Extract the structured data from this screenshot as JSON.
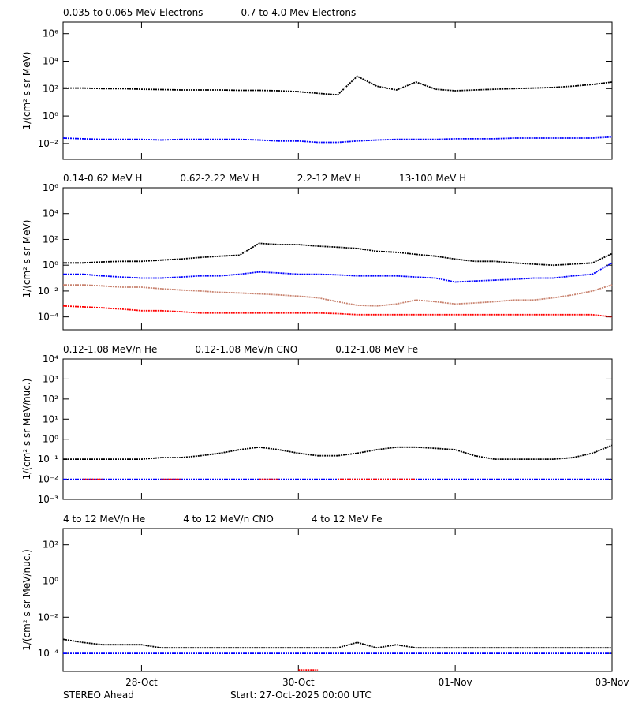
{
  "chart_data": [
    {
      "type": "line",
      "log_y": true,
      "xlim": [
        0,
        7
      ],
      "ylim": [
        0.0007,
        7000000
      ],
      "ylabel": "1/(cm² s sr MeV)",
      "yticks": [
        {
          "value": 0.01,
          "label": "10⁻²"
        },
        {
          "value": 1,
          "label": "10⁰"
        },
        {
          "value": 100,
          "label": "10²"
        },
        {
          "value": 10000,
          "label": "10⁴"
        },
        {
          "value": 1000000,
          "label": "10⁶"
        }
      ],
      "x": [
        0,
        0.25,
        0.5,
        0.75,
        1,
        1.25,
        1.5,
        1.75,
        2,
        2.25,
        2.5,
        2.75,
        3,
        3.25,
        3.5,
        3.75,
        4,
        4.25,
        4.5,
        4.75,
        5,
        5.25,
        5.5,
        5.75,
        6,
        6.25,
        6.5,
        6.75,
        7
      ],
      "series": [
        {
          "name": "0.035 to 0.065 MeV Electrons",
          "color": "#000000",
          "values": [
            110,
            110,
            100,
            100,
            90,
            85,
            80,
            80,
            80,
            75,
            75,
            70,
            60,
            45,
            35,
            800,
            150,
            80,
            300,
            90,
            70,
            80,
            90,
            100,
            110,
            120,
            150,
            200,
            300
          ]
        },
        {
          "name": "0.7 to 4.0 Mev Electrons",
          "color": "#0000ff",
          "values": [
            0.025,
            0.022,
            0.02,
            0.02,
            0.02,
            0.018,
            0.02,
            0.02,
            0.02,
            0.02,
            0.018,
            0.015,
            0.015,
            0.012,
            0.012,
            0.015,
            0.018,
            0.02,
            0.02,
            0.02,
            0.022,
            0.022,
            0.022,
            0.025,
            0.025,
            0.025,
            0.025,
            0.025,
            0.03
          ]
        }
      ]
    },
    {
      "type": "line",
      "log_y": true,
      "xlim": [
        0,
        7
      ],
      "ylim": [
        1e-05,
        1000000
      ],
      "ylabel": "1/(cm² s sr MeV)",
      "yticks": [
        {
          "value": 0.0001,
          "label": "10⁻⁴"
        },
        {
          "value": 0.01,
          "label": "10⁻²"
        },
        {
          "value": 1,
          "label": "10⁰"
        },
        {
          "value": 100,
          "label": "10²"
        },
        {
          "value": 10000,
          "label": "10⁴"
        },
        {
          "value": 1000000,
          "label": "10⁶"
        }
      ],
      "x": [
        0,
        0.25,
        0.5,
        0.75,
        1,
        1.25,
        1.5,
        1.75,
        2,
        2.25,
        2.5,
        2.75,
        3,
        3.25,
        3.5,
        3.75,
        4,
        4.25,
        4.5,
        4.75,
        5,
        5.25,
        5.5,
        5.75,
        6,
        6.25,
        6.5,
        6.75,
        7
      ],
      "series": [
        {
          "name": "0.14-0.62 MeV H",
          "color": "#000000",
          "values": [
            1.5,
            1.5,
            1.8,
            2,
            2,
            2.5,
            3,
            4,
            5,
            6,
            50,
            40,
            40,
            30,
            25,
            20,
            12,
            10,
            7,
            5,
            3,
            2,
            2,
            1.5,
            1.2,
            1,
            1.2,
            1.5,
            8
          ]
        },
        {
          "name": "0.62-2.22 MeV H",
          "color": "#0000ff",
          "values": [
            0.2,
            0.2,
            0.15,
            0.12,
            0.1,
            0.1,
            0.12,
            0.15,
            0.15,
            0.2,
            0.3,
            0.25,
            0.2,
            0.2,
            0.18,
            0.15,
            0.15,
            0.15,
            0.12,
            0.1,
            0.05,
            0.06,
            0.07,
            0.08,
            0.1,
            0.1,
            0.15,
            0.2,
            1.5
          ]
        },
        {
          "name": "2.2-12 MeV H",
          "color": "#c8826e",
          "values": [
            0.03,
            0.03,
            0.025,
            0.02,
            0.02,
            0.015,
            0.012,
            0.01,
            0.008,
            0.007,
            0.006,
            0.005,
            0.004,
            0.003,
            0.0015,
            0.0008,
            0.0007,
            0.001,
            0.002,
            0.0015,
            0.001,
            0.0012,
            0.0015,
            0.002,
            0.002,
            0.003,
            0.005,
            0.01,
            0.03
          ]
        },
        {
          "name": "13-100 MeV H",
          "color": "#ff0000",
          "values": [
            0.0007,
            0.0006,
            0.0005,
            0.0004,
            0.0003,
            0.0003,
            0.00025,
            0.0002,
            0.0002,
            0.0002,
            0.0002,
            0.0002,
            0.0002,
            0.0002,
            0.00018,
            0.00015,
            0.00015,
            0.00015,
            0.00015,
            0.00015,
            0.00015,
            0.00015,
            0.00015,
            0.00015,
            0.00015,
            0.00015,
            0.00015,
            0.00015,
            0.0001
          ]
        }
      ]
    },
    {
      "type": "line",
      "log_y": true,
      "xlim": [
        0,
        7
      ],
      "ylim": [
        0.001,
        10000
      ],
      "ylabel": "1/(cm² s sr MeV/nuc.)",
      "yticks": [
        {
          "value": 0.001,
          "label": "10⁻³"
        },
        {
          "value": 0.01,
          "label": "10⁻²"
        },
        {
          "value": 0.1,
          "label": "10⁻¹"
        },
        {
          "value": 1,
          "label": "10⁰"
        },
        {
          "value": 10,
          "label": "10¹"
        },
        {
          "value": 100,
          "label": "10²"
        },
        {
          "value": 1000,
          "label": "10³"
        },
        {
          "value": 10000,
          "label": "10⁴"
        }
      ],
      "x": [
        0,
        0.25,
        0.5,
        0.75,
        1,
        1.25,
        1.5,
        1.75,
        2,
        2.25,
        2.5,
        2.75,
        3,
        3.25,
        3.5,
        3.75,
        4,
        4.25,
        4.5,
        4.75,
        5,
        5.25,
        5.5,
        5.75,
        6,
        6.25,
        6.5,
        6.75,
        7
      ],
      "series": [
        {
          "name": "0.12-1.08 MeV/n He",
          "color": "#000000",
          "values": [
            0.1,
            0.1,
            0.1,
            0.1,
            0.1,
            0.12,
            0.12,
            0.15,
            0.2,
            0.3,
            0.4,
            0.3,
            0.2,
            0.15,
            0.15,
            0.2,
            0.3,
            0.4,
            0.4,
            0.35,
            0.3,
            0.15,
            0.1,
            0.1,
            0.1,
            0.1,
            0.12,
            0.2,
            0.5
          ]
        },
        {
          "name": "0.12-1.08 MeV/n CNO",
          "color": "#0000ff",
          "values": [
            0.01,
            0.01,
            0.01,
            0.01,
            0.01,
            0.01,
            0.01,
            0.01,
            0.01,
            0.01,
            0.01,
            0.01,
            0.01,
            0.01,
            0.01,
            0.01,
            0.01,
            0.01,
            0.01,
            0.01,
            0.01,
            0.01,
            0.01,
            0.01,
            0.01,
            0.01,
            0.01,
            0.01,
            0.01
          ]
        },
        {
          "name": "0.12-1.08 MeV Fe",
          "color": "#ff0000",
          "values": [
            null,
            0.01,
            0.01,
            null,
            null,
            0.01,
            0.01,
            null,
            null,
            null,
            0.01,
            0.01,
            null,
            null,
            0.01,
            0.01,
            0.01,
            0.01,
            0.01,
            null,
            null,
            null,
            null,
            null,
            null,
            null,
            null,
            null,
            null
          ]
        }
      ]
    },
    {
      "type": "line",
      "log_y": true,
      "xlim": [
        0,
        7
      ],
      "ylim": [
        1e-05,
        800
      ],
      "ylabel": "1/(cm² s sr MeV/nuc.)",
      "yticks": [
        {
          "value": 0.0001,
          "label": "10⁻⁴"
        },
        {
          "value": 0.01,
          "label": "10⁻²"
        },
        {
          "value": 1,
          "label": "10⁰"
        },
        {
          "value": 100,
          "label": "10²"
        }
      ],
      "xticks": [
        {
          "value": 1,
          "label": "28-Oct"
        },
        {
          "value": 3,
          "label": "30-Oct"
        },
        {
          "value": 5,
          "label": "01-Nov"
        },
        {
          "value": 7,
          "label": "03-Nov"
        }
      ],
      "x": [
        0,
        0.25,
        0.5,
        0.75,
        1,
        1.25,
        1.5,
        1.75,
        2,
        2.25,
        2.5,
        2.75,
        3,
        3.25,
        3.5,
        3.75,
        4,
        4.25,
        4.5,
        4.75,
        5,
        5.25,
        5.5,
        5.75,
        6,
        6.25,
        6.5,
        6.75,
        7
      ],
      "series": [
        {
          "name": "4 to 12 MeV/n He",
          "color": "#000000",
          "values": [
            0.0006,
            0.0004,
            0.0003,
            0.0003,
            0.0003,
            0.0002,
            0.0002,
            0.0002,
            0.0002,
            0.0002,
            0.0002,
            0.0002,
            0.0002,
            0.0002,
            0.0002,
            0.0004,
            0.0002,
            0.0003,
            0.0002,
            0.0002,
            0.0002,
            0.0002,
            0.0002,
            0.0002,
            0.0002,
            0.0002,
            0.0002,
            0.0002,
            0.0002
          ]
        },
        {
          "name": "4 to 12 MeV/n CNO",
          "color": "#0000ff",
          "values": [
            0.0001,
            0.0001,
            0.0001,
            0.0001,
            0.0001,
            0.0001,
            0.0001,
            0.0001,
            0.0001,
            0.0001,
            0.0001,
            0.0001,
            0.0001,
            0.0001,
            0.0001,
            0.0001,
            0.0001,
            0.0001,
            0.0001,
            0.0001,
            0.0001,
            0.0001,
            0.0001,
            0.0001,
            0.0001,
            0.0001,
            0.0001,
            0.0001,
            0.0001
          ]
        },
        {
          "name": "4 to 12 MeV Fe",
          "color": "#ff0000",
          "values": [
            null,
            null,
            null,
            null,
            null,
            null,
            null,
            null,
            null,
            null,
            null,
            null,
            1.2e-05,
            1.2e-05,
            null,
            null,
            null,
            null,
            null,
            null,
            null,
            null,
            null,
            null,
            null,
            null,
            null,
            null,
            null
          ]
        }
      ]
    }
  ],
  "footer": {
    "left": "STEREO Ahead",
    "center": "Start: 27-Oct-2025 00:00 UTC"
  }
}
